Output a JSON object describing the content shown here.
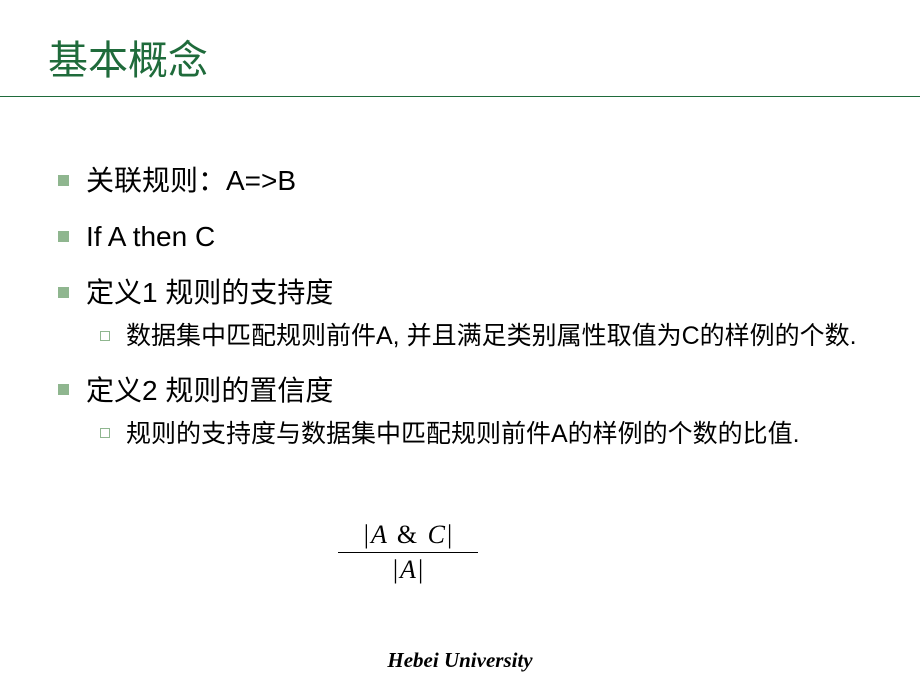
{
  "title": "基本概念",
  "colors": {
    "title": "#1f6b3b",
    "underline": "#1f6b3b",
    "bullet_main_fill": "#8fb68f",
    "bullet_sub_border": "#8fb68f",
    "text": "#000000",
    "background": "#ffffff"
  },
  "bullets": {
    "item1": "关联规则：A=>B",
    "item2": "If A then C",
    "item3": "定义1 规则的支持度",
    "item3_sub1": "数据集中匹配规则前件A, 并且满足类别属性取值为C的样例的个数.",
    "item4": "定义2 规则的置信度",
    "item4_sub1": "规则的支持度与数据集中匹配规则前件A的样例的个数的比值."
  },
  "formula": {
    "numerator_display": "| A & C |",
    "denominator_display": "| A |",
    "num_var1": "A",
    "num_op": "&",
    "num_var2": "C",
    "den_var": "A"
  },
  "footer": "Hebei University"
}
